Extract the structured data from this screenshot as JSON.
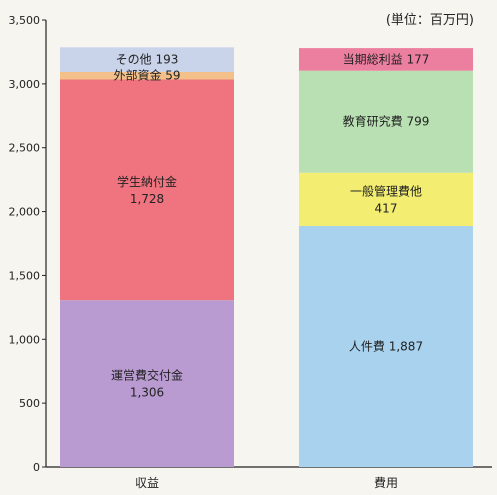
{
  "chart_data": {
    "type": "bar",
    "stacked": true,
    "unit_label": "(単位：百万円)",
    "ylim": [
      0,
      3500
    ],
    "yticks": [
      0,
      500,
      1000,
      1500,
      2000,
      2500,
      3000,
      3500
    ],
    "ytick_labels": [
      "0",
      "500",
      "1,000",
      "1,500",
      "2,000",
      "2,500",
      "3,000",
      "3,500"
    ],
    "grid": false,
    "categories": [
      "収益",
      "費用"
    ],
    "bars": [
      {
        "category": "収益",
        "segments": [
          {
            "name": "運営費交付金",
            "value": 1306,
            "value_label": "1,306",
            "color": "#b99bd2"
          },
          {
            "name": "学生納付金",
            "value": 1728,
            "value_label": "1,728",
            "color": "#ef7480"
          },
          {
            "name": "外部資金",
            "value": 59,
            "value_label": "59",
            "color": "#f4c08a"
          },
          {
            "name": "その他",
            "value": 193,
            "value_label": "193",
            "color": "#c9d3ea"
          }
        ]
      },
      {
        "category": "費用",
        "segments": [
          {
            "name": "人件費",
            "value": 1887,
            "value_label": "1,887",
            "color": "#a8d2ee"
          },
          {
            "name": "一般管理費他",
            "value": 417,
            "value_label": "417",
            "color": "#f3ee72"
          },
          {
            "name": "教育研究費",
            "value": 799,
            "value_label": "799",
            "color": "#b9e0b2"
          },
          {
            "name": "当期総利益",
            "value": 177,
            "value_label": "177",
            "color": "#ec7f9f"
          }
        ]
      }
    ]
  }
}
